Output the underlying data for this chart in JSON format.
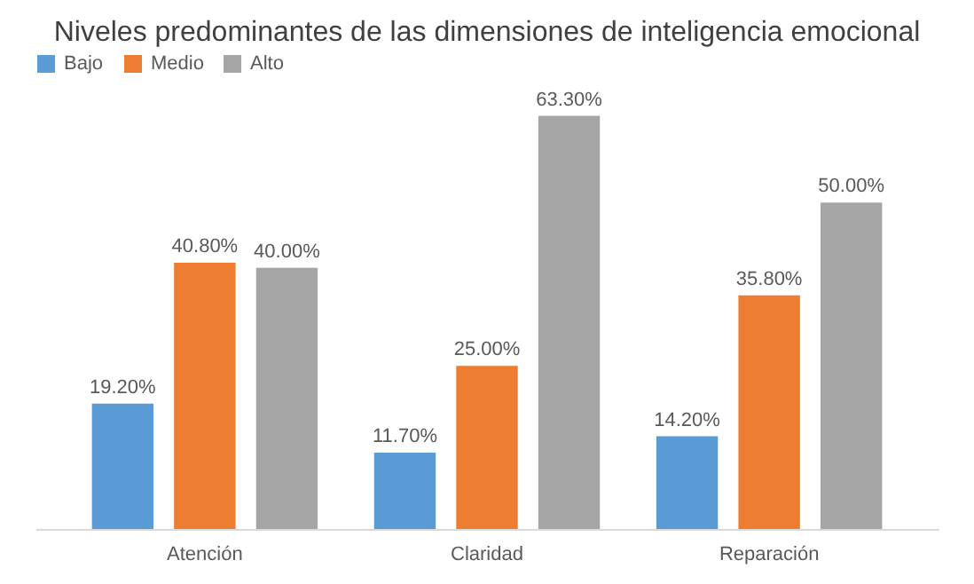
{
  "chart_data": {
    "type": "bar",
    "title": "Niveles predominantes de las dimensiones de inteligencia emocional",
    "categories": [
      "Atención",
      "Claridad",
      "Reparación"
    ],
    "series": [
      {
        "name": "Bajo",
        "color": "#5b9bd5",
        "values": [
          19.2,
          11.7,
          14.2
        ],
        "value_labels": [
          "19.20%",
          "11.70%",
          "14.20%"
        ]
      },
      {
        "name": "Medio",
        "color": "#ed7d31",
        "values": [
          40.8,
          25.0,
          35.8
        ],
        "value_labels": [
          "40.80%",
          "25.00%",
          "35.80%"
        ]
      },
      {
        "name": "Alto",
        "color": "#a5a5a5",
        "values": [
          40.0,
          63.3,
          50.0
        ],
        "value_labels": [
          "40.00%",
          "63.30%",
          "50.00%"
        ]
      }
    ],
    "legend": "top",
    "grid": false
  }
}
